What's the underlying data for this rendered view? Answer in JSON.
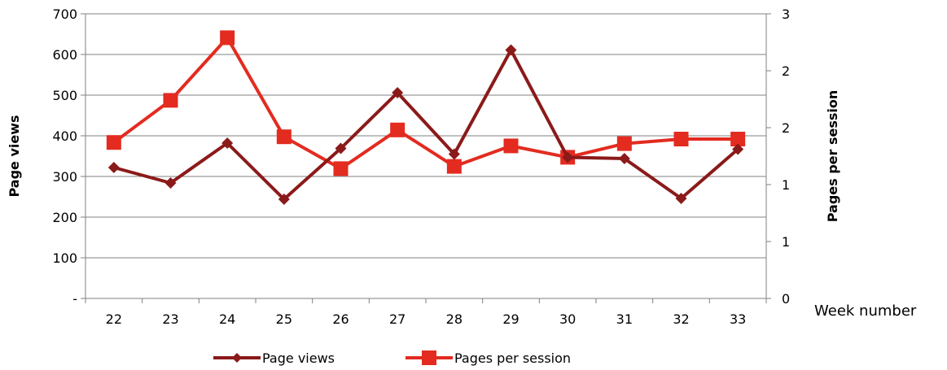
{
  "chart_data": {
    "type": "line",
    "xlabel": "Week number",
    "ylabel": "Page views",
    "y2label": "Pages per session",
    "categories": [
      "22",
      "23",
      "24",
      "25",
      "26",
      "27",
      "28",
      "29",
      "30",
      "31",
      "32",
      "33"
    ],
    "ylim": [
      0,
      700
    ],
    "y_ticks": [
      0,
      100,
      200,
      300,
      400,
      500,
      600,
      700
    ],
    "y_tick_labels": [
      "-",
      "100",
      "200",
      "300",
      "400",
      "500",
      "600",
      "700"
    ],
    "y2lim": [
      0,
      2.5
    ],
    "y2_tick_labels": [
      "0",
      "1",
      "1",
      "2",
      "2",
      "3"
    ],
    "legend_position": "bottom",
    "grid": "horizontal",
    "series": [
      {
        "name": "Page views",
        "axis": "left",
        "color": "#8b1a1a",
        "marker": "diamond",
        "values": [
          322,
          284,
          382,
          244,
          369,
          506,
          355,
          611,
          347,
          344,
          246,
          367
        ]
      },
      {
        "name": "Pages per session",
        "axis": "right",
        "color": "#e32b20",
        "marker": "square",
        "values": [
          1.37,
          1.74,
          2.29,
          1.42,
          1.14,
          1.48,
          1.16,
          1.34,
          1.24,
          1.36,
          1.4,
          1.4
        ]
      }
    ]
  }
}
